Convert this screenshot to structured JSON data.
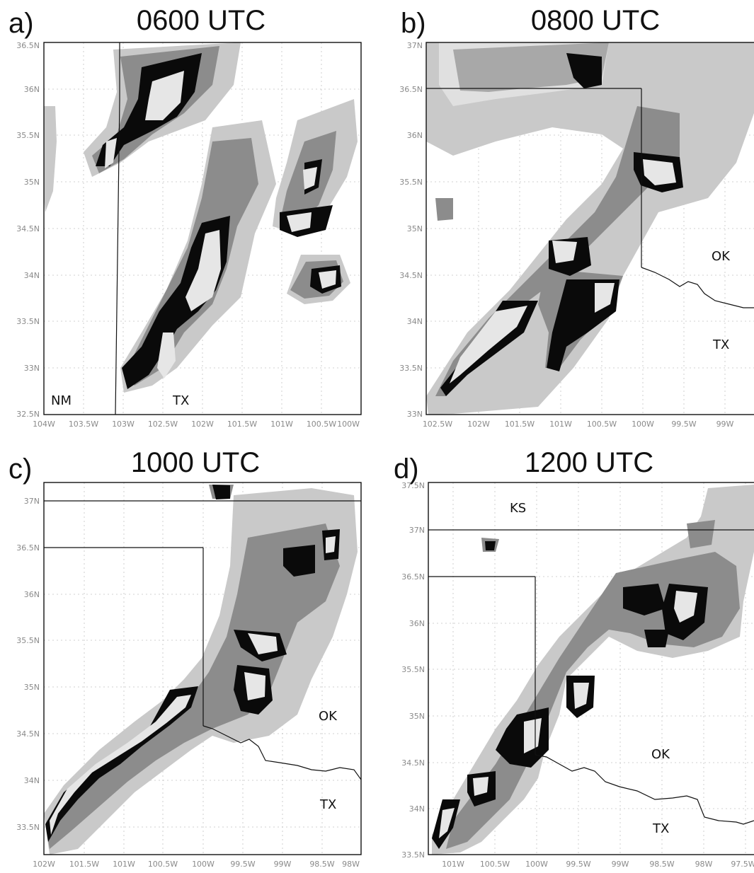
{
  "panels": [
    {
      "id": "a",
      "label": "a)",
      "title": "0600 UTC",
      "x_ticks": [
        "104W",
        "103.5W",
        "103W",
        "102.5W",
        "102W",
        "101.5W",
        "101W",
        "100.5W",
        "100W"
      ],
      "y_ticks": [
        "32.5N",
        "33N",
        "33.5N",
        "34N",
        "34.5N",
        "35N",
        "35.5N",
        "36N",
        "36.5N"
      ],
      "states": [
        "NM",
        "TX"
      ]
    },
    {
      "id": "b",
      "label": "b)",
      "title": "0800 UTC",
      "x_ticks": [
        "102.5W",
        "102W",
        "101.5W",
        "101W",
        "100.5W",
        "100W",
        "99.5W",
        "99W"
      ],
      "y_ticks": [
        "33N",
        "33.5N",
        "34N",
        "34.5N",
        "35N",
        "35.5N",
        "36N",
        "36.5N",
        "37N"
      ],
      "states": [
        "OK",
        "TX"
      ]
    },
    {
      "id": "c",
      "label": "c)",
      "title": "1000 UTC",
      "x_ticks": [
        "102W",
        "101.5W",
        "101W",
        "100.5W",
        "100W",
        "99.5W",
        "99W",
        "98.5W",
        "98W"
      ],
      "y_ticks": [
        "33.5N",
        "34N",
        "34.5N",
        "35N",
        "35.5N",
        "36N",
        "36.5N",
        "37N"
      ],
      "states": [
        "OK",
        "TX"
      ]
    },
    {
      "id": "d",
      "label": "d)",
      "title": "1200 UTC",
      "x_ticks": [
        "101W",
        "100.5W",
        "100W",
        "99.5W",
        "99W",
        "98.5W",
        "98W",
        "97.5W"
      ],
      "y_ticks": [
        "33.5N",
        "34N",
        "34.5N",
        "35N",
        "35.5N",
        "36N",
        "36.5N",
        "37N",
        "37.5N"
      ],
      "states": [
        "KS",
        "OK",
        "TX"
      ]
    }
  ],
  "colors": {
    "light": "#c9c9c9",
    "medium": "#8c8c8c",
    "dark": "#0a0a0a",
    "core": "#e6e6e6",
    "grid": "#c4c4c4",
    "border": "#111111"
  }
}
